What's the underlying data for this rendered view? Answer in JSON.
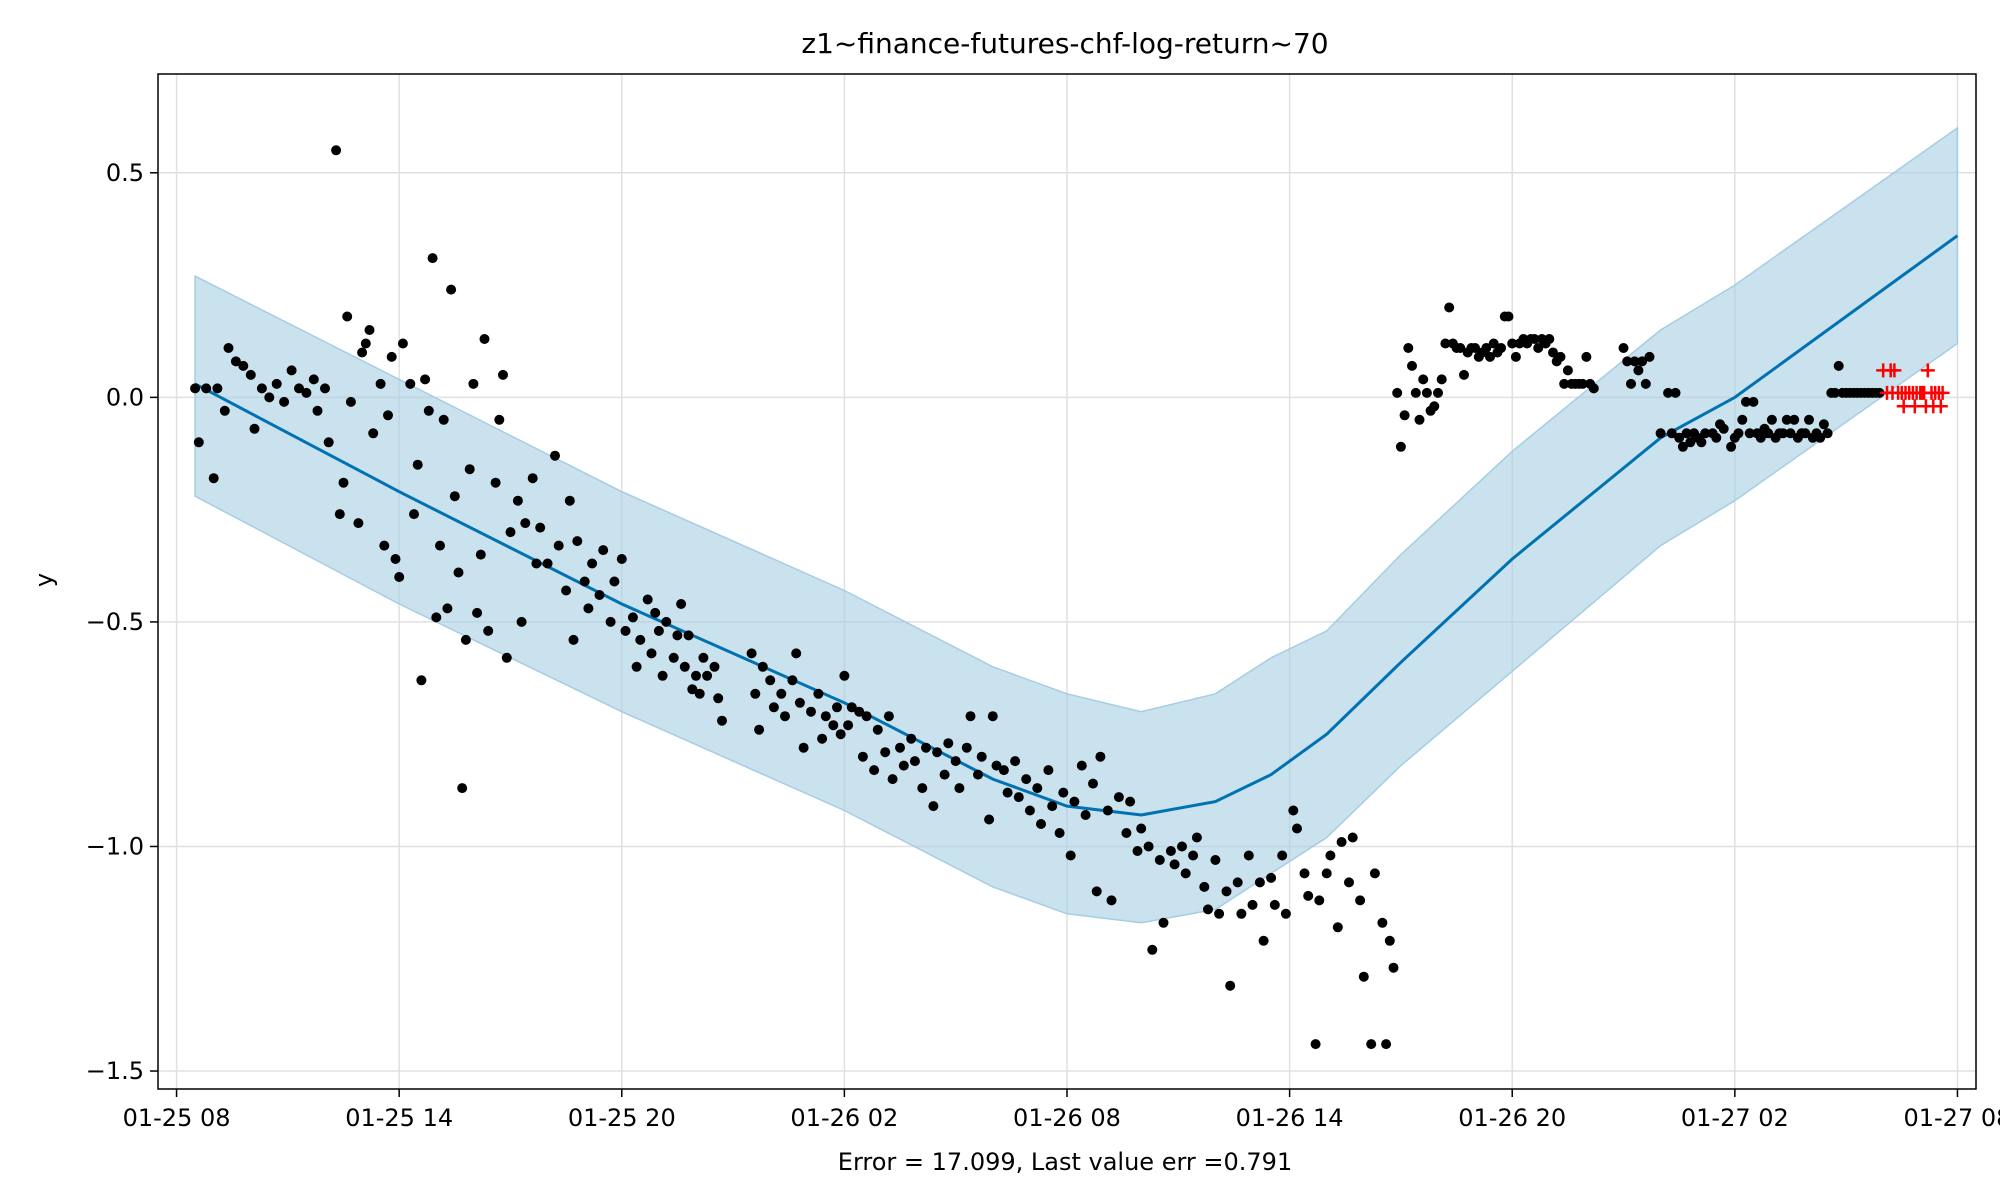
{
  "colors": {
    "band": "#a6cde3",
    "forecast": "#0072b2",
    "observed": "#000000",
    "future": "#ff0000",
    "grid": "#e0e0e0"
  },
  "chart_data": {
    "type": "scatter",
    "title": "z1~finance-futures-chf-log-return~70",
    "xlabel": "Error = 17.099, Last value err =0.791",
    "ylabel": "y",
    "x_unit": "hours since 01-25 08:00",
    "xlim": [
      -0.5,
      48.5
    ],
    "ylim": [
      -1.54,
      0.72
    ],
    "grid": true,
    "x_ticks": [
      {
        "x": 0,
        "label": "01-25 08"
      },
      {
        "x": 6,
        "label": "01-25 14"
      },
      {
        "x": 12,
        "label": "01-25 20"
      },
      {
        "x": 18,
        "label": "01-26 02"
      },
      {
        "x": 24,
        "label": "01-26 08"
      },
      {
        "x": 30,
        "label": "01-26 14"
      },
      {
        "x": 36,
        "label": "01-26 20"
      },
      {
        "x": 42,
        "label": "01-27 02"
      },
      {
        "x": 48,
        "label": "01-27 08"
      }
    ],
    "y_ticks": [
      {
        "y": 0.5,
        "label": "0.5"
      },
      {
        "y": 0.0,
        "label": "0.0"
      },
      {
        "y": -0.5,
        "label": "−0.5"
      },
      {
        "y": -1.0,
        "label": "−1.0"
      },
      {
        "y": -1.5,
        "label": "−1.5"
      }
    ],
    "forecast_line": {
      "x": [
        0.5,
        6,
        12,
        18,
        22,
        24,
        26,
        28,
        29.5,
        31,
        33,
        36,
        40,
        42,
        48
      ],
      "y": [
        0.03,
        -0.21,
        -0.46,
        -0.68,
        -0.85,
        -0.91,
        -0.93,
        -0.9,
        -0.84,
        -0.75,
        -0.59,
        -0.36,
        -0.09,
        0.0,
        0.36
      ]
    },
    "band": {
      "x": [
        0.5,
        6,
        12,
        18,
        22,
        24,
        26,
        28,
        29.5,
        31,
        33,
        36,
        40,
        42,
        48
      ],
      "upper": [
        0.27,
        0.04,
        -0.21,
        -0.43,
        -0.6,
        -0.66,
        -0.7,
        -0.66,
        -0.58,
        -0.52,
        -0.35,
        -0.12,
        0.15,
        0.25,
        0.6
      ],
      "lower": [
        -0.22,
        -0.46,
        -0.7,
        -0.92,
        -1.09,
        -1.15,
        -1.17,
        -1.14,
        -1.06,
        -0.98,
        -0.82,
        -0.61,
        -0.33,
        -0.23,
        0.12
      ]
    },
    "observed": [
      [
        0.5,
        0.02
      ],
      [
        0.6,
        -0.1
      ],
      [
        0.8,
        0.02
      ],
      [
        1.0,
        -0.18
      ],
      [
        1.1,
        0.02
      ],
      [
        1.3,
        -0.03
      ],
      [
        1.4,
        0.11
      ],
      [
        1.6,
        0.08
      ],
      [
        1.8,
        0.07
      ],
      [
        2.0,
        0.05
      ],
      [
        2.1,
        -0.07
      ],
      [
        2.3,
        0.02
      ],
      [
        2.5,
        0.0
      ],
      [
        2.7,
        0.03
      ],
      [
        2.9,
        -0.01
      ],
      [
        3.1,
        0.06
      ],
      [
        3.3,
        0.02
      ],
      [
        3.5,
        0.01
      ],
      [
        3.7,
        0.04
      ],
      [
        3.8,
        -0.03
      ],
      [
        4.0,
        0.02
      ],
      [
        4.1,
        -0.1
      ],
      [
        4.3,
        0.55
      ],
      [
        4.4,
        -0.26
      ],
      [
        4.5,
        -0.19
      ],
      [
        4.6,
        0.18
      ],
      [
        4.7,
        -0.01
      ],
      [
        4.9,
        -0.28
      ],
      [
        5.0,
        0.1
      ],
      [
        5.1,
        0.12
      ],
      [
        5.2,
        0.15
      ],
      [
        5.3,
        -0.08
      ],
      [
        5.5,
        0.03
      ],
      [
        5.6,
        -0.33
      ],
      [
        5.7,
        -0.04
      ],
      [
        5.8,
        0.09
      ],
      [
        5.9,
        -0.36
      ],
      [
        6.0,
        -0.4
      ],
      [
        6.1,
        0.12
      ],
      [
        6.3,
        0.03
      ],
      [
        6.4,
        -0.26
      ],
      [
        6.5,
        -0.15
      ],
      [
        6.6,
        -0.63
      ],
      [
        6.7,
        0.04
      ],
      [
        6.8,
        -0.03
      ],
      [
        6.9,
        0.31
      ],
      [
        7.0,
        -0.49
      ],
      [
        7.1,
        -0.33
      ],
      [
        7.2,
        -0.05
      ],
      [
        7.3,
        -0.47
      ],
      [
        7.4,
        0.24
      ],
      [
        7.5,
        -0.22
      ],
      [
        7.6,
        -0.39
      ],
      [
        7.7,
        -0.87
      ],
      [
        7.8,
        -0.54
      ],
      [
        7.9,
        -0.16
      ],
      [
        8.0,
        0.03
      ],
      [
        8.1,
        -0.48
      ],
      [
        8.2,
        -0.35
      ],
      [
        8.3,
        0.13
      ],
      [
        8.4,
        -0.52
      ],
      [
        8.6,
        -0.19
      ],
      [
        8.7,
        -0.05
      ],
      [
        8.8,
        0.05
      ],
      [
        8.9,
        -0.58
      ],
      [
        9.0,
        -0.3
      ],
      [
        9.2,
        -0.23
      ],
      [
        9.3,
        -0.5
      ],
      [
        9.4,
        -0.28
      ],
      [
        9.6,
        -0.18
      ],
      [
        9.7,
        -0.37
      ],
      [
        9.8,
        -0.29
      ],
      [
        10.0,
        -0.37
      ],
      [
        10.2,
        -0.13
      ],
      [
        10.3,
        -0.33
      ],
      [
        10.5,
        -0.43
      ],
      [
        10.6,
        -0.23
      ],
      [
        10.7,
        -0.54
      ],
      [
        10.8,
        -0.32
      ],
      [
        11.0,
        -0.41
      ],
      [
        11.1,
        -0.47
      ],
      [
        11.2,
        -0.37
      ],
      [
        11.4,
        -0.44
      ],
      [
        11.5,
        -0.34
      ],
      [
        11.7,
        -0.5
      ],
      [
        11.8,
        -0.41
      ],
      [
        12.0,
        -0.36
      ],
      [
        12.1,
        -0.52
      ],
      [
        12.3,
        -0.49
      ],
      [
        12.4,
        -0.6
      ],
      [
        12.5,
        -0.54
      ],
      [
        12.7,
        -0.45
      ],
      [
        12.8,
        -0.57
      ],
      [
        12.9,
        -0.48
      ],
      [
        13.0,
        -0.52
      ],
      [
        13.1,
        -0.62
      ],
      [
        13.2,
        -0.5
      ],
      [
        13.4,
        -0.58
      ],
      [
        13.5,
        -0.53
      ],
      [
        13.6,
        -0.46
      ],
      [
        13.7,
        -0.6
      ],
      [
        13.8,
        -0.53
      ],
      [
        13.9,
        -0.65
      ],
      [
        14.0,
        -0.62
      ],
      [
        14.1,
        -0.66
      ],
      [
        14.2,
        -0.58
      ],
      [
        14.3,
        -0.62
      ],
      [
        14.5,
        -0.6
      ],
      [
        14.6,
        -0.67
      ],
      [
        14.7,
        -0.72
      ],
      [
        15.5,
        -0.57
      ],
      [
        15.6,
        -0.66
      ],
      [
        15.7,
        -0.74
      ],
      [
        15.8,
        -0.6
      ],
      [
        16.0,
        -0.63
      ],
      [
        16.1,
        -0.69
      ],
      [
        16.3,
        -0.66
      ],
      [
        16.4,
        -0.71
      ],
      [
        16.6,
        -0.63
      ],
      [
        16.7,
        -0.57
      ],
      [
        16.8,
        -0.68
      ],
      [
        16.9,
        -0.78
      ],
      [
        17.1,
        -0.7
      ],
      [
        17.3,
        -0.66
      ],
      [
        17.4,
        -0.76
      ],
      [
        17.5,
        -0.71
      ],
      [
        17.7,
        -0.73
      ],
      [
        17.8,
        -0.69
      ],
      [
        17.9,
        -0.75
      ],
      [
        18.0,
        -0.62
      ],
      [
        18.1,
        -0.73
      ],
      [
        18.2,
        -0.69
      ],
      [
        18.4,
        -0.7
      ],
      [
        18.5,
        -0.8
      ],
      [
        18.6,
        -0.71
      ],
      [
        18.8,
        -0.83
      ],
      [
        18.9,
        -0.74
      ],
      [
        19.1,
        -0.79
      ],
      [
        19.2,
        -0.71
      ],
      [
        19.3,
        -0.85
      ],
      [
        19.5,
        -0.78
      ],
      [
        19.6,
        -0.82
      ],
      [
        19.8,
        -0.76
      ],
      [
        19.9,
        -0.81
      ],
      [
        20.1,
        -0.87
      ],
      [
        20.2,
        -0.78
      ],
      [
        20.4,
        -0.91
      ],
      [
        20.5,
        -0.79
      ],
      [
        20.7,
        -0.84
      ],
      [
        20.8,
        -0.77
      ],
      [
        21.0,
        -0.81
      ],
      [
        21.1,
        -0.87
      ],
      [
        21.3,
        -0.78
      ],
      [
        21.4,
        -0.71
      ],
      [
        21.6,
        -0.84
      ],
      [
        21.7,
        -0.8
      ],
      [
        21.9,
        -0.94
      ],
      [
        22.0,
        -0.71
      ],
      [
        22.1,
        -0.82
      ],
      [
        22.3,
        -0.83
      ],
      [
        22.4,
        -0.88
      ],
      [
        22.6,
        -0.81
      ],
      [
        22.7,
        -0.89
      ],
      [
        22.9,
        -0.85
      ],
      [
        23.0,
        -0.92
      ],
      [
        23.2,
        -0.87
      ],
      [
        23.3,
        -0.95
      ],
      [
        23.5,
        -0.83
      ],
      [
        23.6,
        -0.91
      ],
      [
        23.8,
        -0.97
      ],
      [
        23.9,
        -0.88
      ],
      [
        24.1,
        -1.02
      ],
      [
        24.2,
        -0.9
      ],
      [
        24.4,
        -0.82
      ],
      [
        24.5,
        -0.93
      ],
      [
        24.7,
        -0.86
      ],
      [
        24.8,
        -1.1
      ],
      [
        24.9,
        -0.8
      ],
      [
        25.1,
        -0.92
      ],
      [
        25.2,
        -1.12
      ],
      [
        25.4,
        -0.89
      ],
      [
        25.6,
        -0.97
      ],
      [
        25.7,
        -0.9
      ],
      [
        25.9,
        -1.01
      ],
      [
        26.0,
        -0.96
      ],
      [
        26.2,
        -1.0
      ],
      [
        26.3,
        -1.23
      ],
      [
        26.5,
        -1.03
      ],
      [
        26.6,
        -1.17
      ],
      [
        26.8,
        -1.01
      ],
      [
        26.9,
        -1.04
      ],
      [
        27.1,
        -1.0
      ],
      [
        27.2,
        -1.06
      ],
      [
        27.4,
        -1.02
      ],
      [
        27.5,
        -0.98
      ],
      [
        27.7,
        -1.09
      ],
      [
        27.8,
        -1.14
      ],
      [
        28.0,
        -1.03
      ],
      [
        28.1,
        -1.15
      ],
      [
        28.3,
        -1.1
      ],
      [
        28.4,
        -1.31
      ],
      [
        28.6,
        -1.08
      ],
      [
        28.7,
        -1.15
      ],
      [
        28.9,
        -1.02
      ],
      [
        29.0,
        -1.13
      ],
      [
        29.2,
        -1.08
      ],
      [
        29.3,
        -1.21
      ],
      [
        29.5,
        -1.07
      ],
      [
        29.6,
        -1.13
      ],
      [
        29.8,
        -1.02
      ],
      [
        29.9,
        -1.15
      ],
      [
        30.1,
        -0.92
      ],
      [
        30.2,
        -0.96
      ],
      [
        30.4,
        -1.06
      ],
      [
        30.5,
        -1.11
      ],
      [
        30.7,
        -1.44
      ],
      [
        30.8,
        -1.12
      ],
      [
        31.0,
        -1.06
      ],
      [
        31.1,
        -1.02
      ],
      [
        31.3,
        -1.18
      ],
      [
        31.4,
        -0.99
      ],
      [
        31.6,
        -1.08
      ],
      [
        31.7,
        -0.98
      ],
      [
        31.9,
        -1.12
      ],
      [
        32.0,
        -1.29
      ],
      [
        32.2,
        -1.44
      ],
      [
        32.3,
        -1.06
      ],
      [
        32.5,
        -1.17
      ],
      [
        32.6,
        -1.44
      ],
      [
        32.7,
        -1.21
      ],
      [
        32.8,
        -1.27
      ],
      [
        32.9,
        0.01
      ],
      [
        33.0,
        -0.11
      ],
      [
        33.1,
        -0.04
      ],
      [
        33.2,
        0.11
      ],
      [
        33.3,
        0.07
      ],
      [
        33.4,
        0.01
      ],
      [
        33.5,
        -0.05
      ],
      [
        33.6,
        0.04
      ],
      [
        33.7,
        0.01
      ],
      [
        33.8,
        -0.03
      ],
      [
        33.9,
        -0.02
      ],
      [
        34.0,
        0.01
      ],
      [
        34.1,
        0.04
      ],
      [
        34.2,
        0.12
      ],
      [
        34.3,
        0.2
      ],
      [
        34.4,
        0.12
      ],
      [
        34.5,
        0.11
      ],
      [
        34.6,
        0.11
      ],
      [
        34.7,
        0.05
      ],
      [
        34.8,
        0.1
      ],
      [
        34.9,
        0.11
      ],
      [
        35.0,
        0.11
      ],
      [
        35.1,
        0.09
      ],
      [
        35.2,
        0.1
      ],
      [
        35.3,
        0.11
      ],
      [
        35.4,
        0.09
      ],
      [
        35.5,
        0.12
      ],
      [
        35.6,
        0.1
      ],
      [
        35.7,
        0.11
      ],
      [
        35.8,
        0.18
      ],
      [
        35.9,
        0.18
      ],
      [
        36.0,
        0.12
      ],
      [
        36.1,
        0.09
      ],
      [
        36.2,
        0.12
      ],
      [
        36.3,
        0.13
      ],
      [
        36.4,
        0.12
      ],
      [
        36.5,
        0.13
      ],
      [
        36.6,
        0.13
      ],
      [
        36.7,
        0.11
      ],
      [
        36.8,
        0.13
      ],
      [
        36.9,
        0.12
      ],
      [
        37.0,
        0.13
      ],
      [
        37.1,
        0.1
      ],
      [
        37.2,
        0.08
      ],
      [
        37.3,
        0.09
      ],
      [
        37.4,
        0.03
      ],
      [
        37.5,
        0.06
      ],
      [
        37.6,
        0.03
      ],
      [
        37.7,
        0.03
      ],
      [
        37.8,
        0.03
      ],
      [
        37.9,
        0.03
      ],
      [
        38.0,
        0.09
      ],
      [
        38.1,
        0.03
      ],
      [
        38.2,
        0.02
      ],
      [
        39.0,
        0.11
      ],
      [
        39.1,
        0.08
      ],
      [
        39.2,
        0.03
      ],
      [
        39.3,
        0.08
      ],
      [
        39.4,
        0.06
      ],
      [
        39.5,
        0.08
      ],
      [
        39.6,
        0.03
      ],
      [
        39.7,
        0.09
      ],
      [
        40.0,
        -0.08
      ],
      [
        40.2,
        0.01
      ],
      [
        40.3,
        -0.08
      ],
      [
        40.4,
        0.01
      ],
      [
        40.5,
        -0.09
      ],
      [
        40.6,
        -0.11
      ],
      [
        40.7,
        -0.08
      ],
      [
        40.8,
        -0.1
      ],
      [
        40.9,
        -0.08
      ],
      [
        41.0,
        -0.09
      ],
      [
        41.1,
        -0.1
      ],
      [
        41.2,
        -0.08
      ],
      [
        41.4,
        -0.08
      ],
      [
        41.5,
        -0.09
      ],
      [
        41.6,
        -0.06
      ],
      [
        41.7,
        -0.07
      ],
      [
        41.9,
        -0.11
      ],
      [
        42.0,
        -0.09
      ],
      [
        42.1,
        -0.08
      ],
      [
        42.2,
        -0.05
      ],
      [
        42.3,
        -0.01
      ],
      [
        42.4,
        -0.08
      ],
      [
        42.5,
        -0.01
      ],
      [
        42.6,
        -0.08
      ],
      [
        42.7,
        -0.09
      ],
      [
        42.8,
        -0.07
      ],
      [
        42.9,
        -0.08
      ],
      [
        43.0,
        -0.05
      ],
      [
        43.1,
        -0.09
      ],
      [
        43.2,
        -0.08
      ],
      [
        43.3,
        -0.08
      ],
      [
        43.4,
        -0.05
      ],
      [
        43.5,
        -0.08
      ],
      [
        43.6,
        -0.05
      ],
      [
        43.7,
        -0.09
      ],
      [
        43.8,
        -0.08
      ],
      [
        43.9,
        -0.08
      ],
      [
        44.0,
        -0.05
      ],
      [
        44.1,
        -0.09
      ],
      [
        44.2,
        -0.08
      ],
      [
        44.3,
        -0.09
      ],
      [
        44.4,
        -0.06
      ],
      [
        44.5,
        -0.08
      ],
      [
        44.6,
        0.01
      ],
      [
        44.7,
        0.01
      ],
      [
        44.8,
        0.07
      ],
      [
        44.9,
        0.01
      ],
      [
        45.0,
        0.01
      ],
      [
        45.1,
        0.01
      ],
      [
        45.2,
        0.01
      ],
      [
        45.3,
        0.01
      ],
      [
        45.4,
        0.01
      ],
      [
        45.5,
        0.01
      ],
      [
        45.6,
        0.01
      ],
      [
        45.7,
        0.01
      ],
      [
        45.8,
        0.01
      ],
      [
        45.9,
        0.01
      ]
    ],
    "future_points": [
      [
        46.0,
        0.06
      ],
      [
        46.1,
        0.01
      ],
      [
        46.2,
        0.06
      ],
      [
        46.25,
        0.01
      ],
      [
        46.3,
        0.06
      ],
      [
        46.4,
        0.01
      ],
      [
        46.5,
        0.01
      ],
      [
        46.55,
        -0.02
      ],
      [
        46.6,
        0.01
      ],
      [
        46.7,
        0.01
      ],
      [
        46.8,
        0.01
      ],
      [
        46.85,
        -0.02
      ],
      [
        46.9,
        0.01
      ],
      [
        47.0,
        0.01
      ],
      [
        47.05,
        0.01
      ],
      [
        47.1,
        0.01
      ],
      [
        47.15,
        -0.02
      ],
      [
        47.2,
        0.06
      ],
      [
        47.3,
        0.01
      ],
      [
        47.35,
        -0.02
      ],
      [
        47.4,
        0.01
      ],
      [
        47.5,
        0.01
      ],
      [
        47.55,
        -0.02
      ],
      [
        47.6,
        0.01
      ]
    ]
  }
}
